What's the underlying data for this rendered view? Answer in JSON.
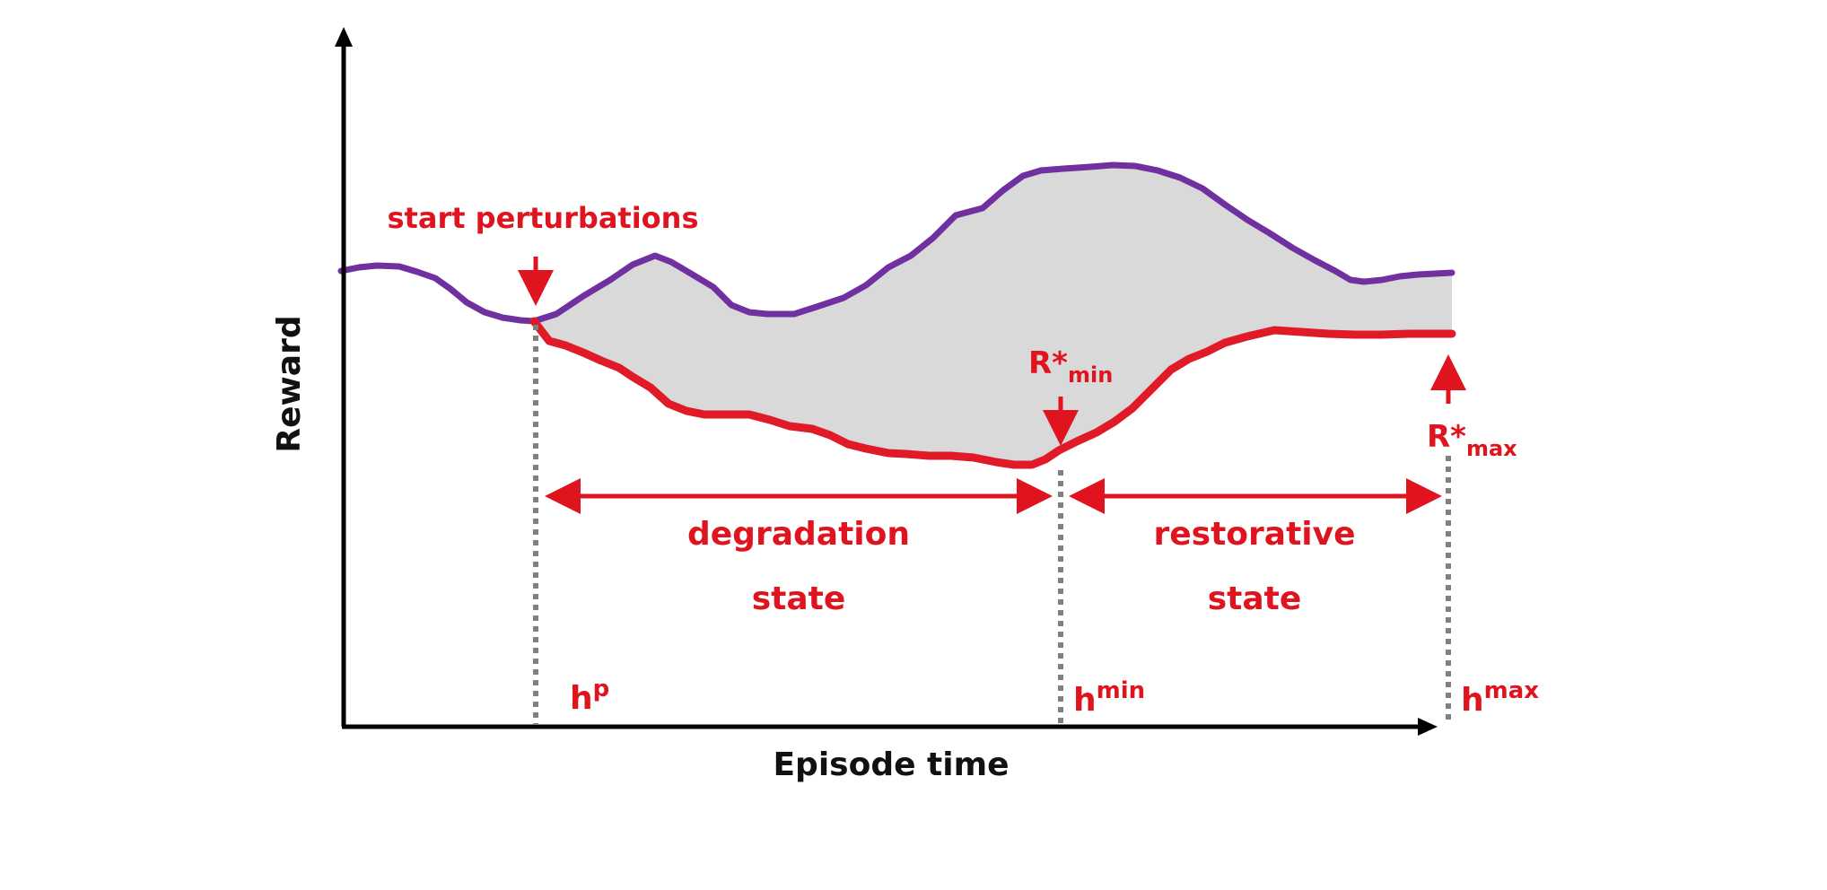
{
  "colors": {
    "purple": "#7030a0",
    "red": "#e01a26",
    "fill": "#d9d9d9",
    "annotation": "#e0141e",
    "axis": "#000000",
    "dotted": "#7f7f7f"
  },
  "axes": {
    "x_label": "Episode time",
    "y_label": "Reward"
  },
  "annotations": {
    "start_perturbations": "start perturbations",
    "r_min_base": "R*",
    "r_min_sub": "min",
    "r_max_base": "R*",
    "r_max_sub": "max",
    "degradation_line1": "degradation",
    "degradation_line2": "state",
    "restorative_line1": "restorative",
    "restorative_line2": "state",
    "hp_base": "h",
    "hp_sup": "p",
    "hmin_base": "h",
    "hmin_sup": "min",
    "hmax_base": "h",
    "hmax_sup": "max"
  }
}
